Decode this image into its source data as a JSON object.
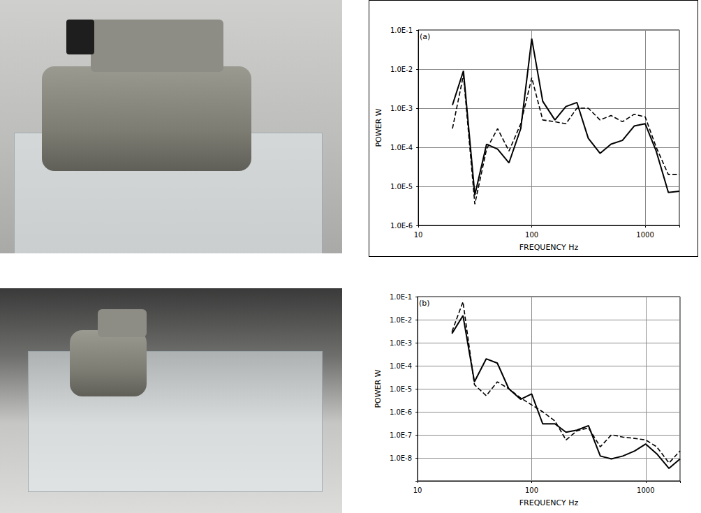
{
  "chart_data": [
    {
      "type": "line",
      "annotation": "(a)",
      "x_label": "FREQUENCY Hz",
      "y_label": "POWER W",
      "log": true,
      "grid": true,
      "xlim": [
        10,
        2000
      ],
      "xticks": [
        10,
        100,
        1000
      ],
      "ylim": [
        1e-06,
        0.1
      ],
      "yticks": [
        {
          "value": 1e-06,
          "label": "1.0E-6"
        },
        {
          "value": 1e-05,
          "label": "1.0E-5"
        },
        {
          "value": 0.0001,
          "label": "1.0E-4"
        },
        {
          "value": 0.001,
          "label": "1.0E-3"
        },
        {
          "value": 0.01,
          "label": "1.0E-2"
        },
        {
          "value": 0.1,
          "label": "1.0E-1"
        }
      ],
      "x": [
        20,
        25,
        31.5,
        40,
        50,
        63,
        80,
        100,
        125,
        160,
        200,
        250,
        315,
        400,
        500,
        630,
        800,
        1000,
        1250,
        1600,
        2000
      ],
      "series": [
        {
          "color": "#000000",
          "line_style": "solid",
          "values": [
            0.0012,
            0.009,
            6e-06,
            0.00012,
            9e-05,
            4e-05,
            0.0003,
            0.06,
            0.0015,
            0.0005,
            0.0011,
            0.0014,
            0.00017,
            7e-05,
            0.00012,
            0.00015,
            0.00035,
            0.0004,
            8e-05,
            7e-06,
            7.5e-06
          ]
        },
        {
          "color": "#000000",
          "line_style": "dashed",
          "values": [
            0.0003,
            0.007,
            3.5e-06,
            9e-05,
            0.0003,
            8e-05,
            0.0004,
            0.006,
            0.0005,
            0.00045,
            0.0004,
            0.001,
            0.001,
            0.0005,
            0.00065,
            0.00045,
            0.0007,
            0.0006,
            0.0001,
            2e-05,
            2e-05
          ]
        }
      ]
    },
    {
      "type": "line",
      "annotation": "(b)",
      "x_label": "FREQUENCY Hz",
      "y_label": "POWER W",
      "log": true,
      "grid": true,
      "xlim": [
        10,
        2000
      ],
      "xticks": [
        10,
        100,
        1000
      ],
      "ylim": [
        1e-09,
        0.1
      ],
      "yticks": [
        {
          "value": 1e-08,
          "label": "1.0E-8"
        },
        {
          "value": 1e-07,
          "label": "1.0E-7"
        },
        {
          "value": 1e-06,
          "label": "1.0E-6"
        },
        {
          "value": 1e-05,
          "label": "1.0E-5"
        },
        {
          "value": 0.0001,
          "label": "1.0E-4"
        },
        {
          "value": 0.001,
          "label": "1.0E-3"
        },
        {
          "value": 0.01,
          "label": "1.0E-2"
        },
        {
          "value": 0.1,
          "label": "1.0E-1"
        }
      ],
      "x": [
        20,
        25,
        31.5,
        40,
        50,
        63,
        80,
        100,
        125,
        160,
        200,
        250,
        315,
        400,
        500,
        630,
        800,
        1000,
        1250,
        1600,
        2000
      ],
      "series": [
        {
          "color": "#000000",
          "line_style": "solid",
          "values": [
            0.0025,
            0.015,
            2e-05,
            0.0002,
            0.00013,
            1e-05,
            3.5e-06,
            6e-06,
            3e-07,
            3e-07,
            1.3e-07,
            1.6e-07,
            2.5e-07,
            1.2e-08,
            9e-09,
            1.2e-08,
            2e-08,
            4e-08,
            1.5e-08,
            3.5e-09,
            9e-09
          ]
        },
        {
          "color": "#000000",
          "line_style": "dashed",
          "values": [
            0.003,
            0.06,
            1.5e-05,
            5e-06,
            2e-05,
            1e-05,
            4e-06,
            2e-06,
            1e-06,
            4e-07,
            6e-08,
            1.5e-07,
            2e-07,
            3e-08,
            1e-07,
            8e-08,
            7e-08,
            6e-08,
            3e-08,
            6e-09,
            2e-08
          ]
        }
      ]
    }
  ]
}
